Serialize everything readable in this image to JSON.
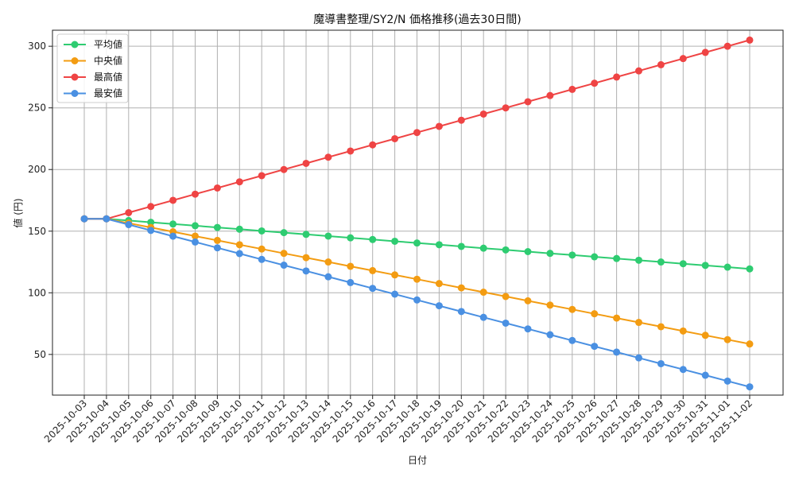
{
  "chart_data": {
    "type": "line",
    "title": "魔導書整理/SY2/N 価格推移(過去30日間)",
    "xlabel": "日付",
    "ylabel": "値 (円)",
    "ylim": [
      17,
      313
    ],
    "yticks": [
      50,
      100,
      150,
      200,
      250,
      300
    ],
    "grid": true,
    "legend_position": "upper-left",
    "x": [
      "2025-10-03",
      "2025-10-04",
      "2025-10-05",
      "2025-10-06",
      "2025-10-07",
      "2025-10-08",
      "2025-10-09",
      "2025-10-10",
      "2025-10-11",
      "2025-10-12",
      "2025-10-13",
      "2025-10-14",
      "2025-10-15",
      "2025-10-16",
      "2025-10-17",
      "2025-10-18",
      "2025-10-19",
      "2025-10-20",
      "2025-10-21",
      "2025-10-22",
      "2025-10-23",
      "2025-10-24",
      "2025-10-25",
      "2025-10-26",
      "2025-10-27",
      "2025-10-28",
      "2025-10-29",
      "2025-10-30",
      "2025-10-31",
      "2025-11-01",
      "2025-11-02"
    ],
    "series": [
      {
        "name": "平均値",
        "color": "#2ecc71",
        "values": [
          160.0,
          160.0,
          158.6,
          157.2,
          155.8,
          154.4,
          153.0,
          151.6,
          150.2,
          148.8,
          147.4,
          146.0,
          144.6,
          143.2,
          141.8,
          140.4,
          139.0,
          137.6,
          136.2,
          134.8,
          133.4,
          132.0,
          130.6,
          129.2,
          127.8,
          126.4,
          125.0,
          123.6,
          122.2,
          120.8,
          119.4
        ]
      },
      {
        "name": "中央値",
        "color": "#f39c12",
        "values": [
          160,
          160,
          156.5,
          153,
          149.5,
          146,
          142.5,
          139,
          135.5,
          132,
          128.5,
          125,
          121.5,
          118,
          114.5,
          111,
          107.5,
          104,
          100.5,
          97,
          93.5,
          90,
          86.5,
          83,
          79.5,
          76,
          72.5,
          69,
          65.5,
          62,
          58.5
        ]
      },
      {
        "name": "最高値",
        "color": "#ef4444",
        "values": [
          160,
          160,
          165,
          170,
          175,
          180,
          185,
          190,
          195,
          200,
          205,
          210,
          215,
          220,
          225,
          230,
          235,
          240,
          245,
          250,
          255,
          260,
          265,
          270,
          275,
          280,
          285,
          290,
          295,
          300,
          305
        ]
      },
      {
        "name": "最安値",
        "color": "#4a90e2",
        "values": [
          160,
          160,
          155.3,
          150.6,
          145.9,
          141.2,
          136.5,
          131.8,
          127.1,
          122.4,
          117.7,
          113,
          108.3,
          103.6,
          98.9,
          94.2,
          89.5,
          84.8,
          80.1,
          75.4,
          70.7,
          66,
          61.3,
          56.6,
          51.9,
          47.2,
          42.5,
          37.8,
          33.1,
          28.4,
          23.7
        ]
      }
    ]
  }
}
